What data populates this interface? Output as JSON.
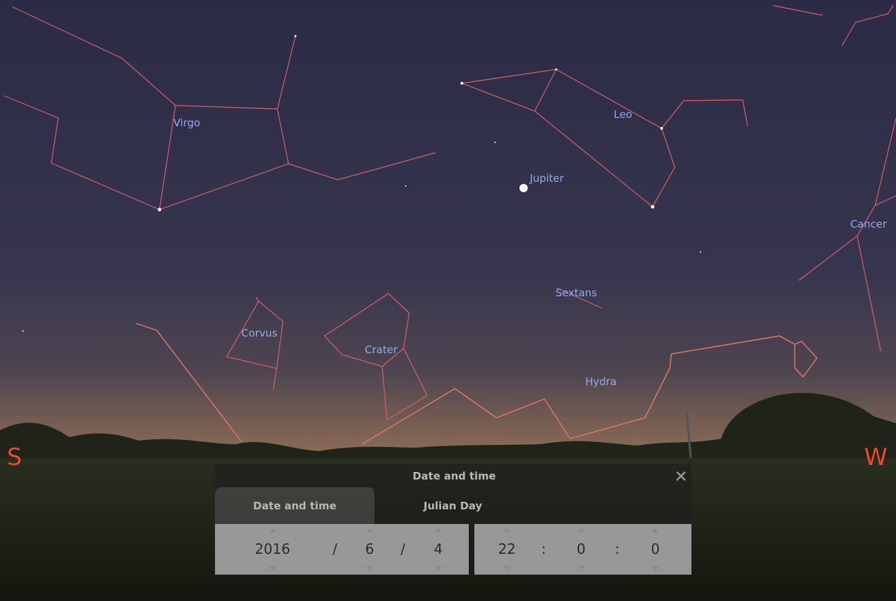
{
  "sky": {
    "labels": [
      "Virgo",
      "Leo",
      "Jupiter",
      "Cancer",
      "Sextans",
      "Corvus",
      "Crater",
      "Hydra"
    ]
  },
  "compass": {
    "south": "S",
    "west": "W"
  },
  "dialog": {
    "title": "Date and time",
    "tabs": [
      "Date and time",
      "Julian Day"
    ],
    "date": {
      "year": 2016,
      "sep1": "/",
      "month": 6,
      "sep2": "/",
      "day": 4
    },
    "time": {
      "hour": 22,
      "sep1": ":",
      "minute": 0,
      "sep2": ":",
      "second": 0
    }
  }
}
